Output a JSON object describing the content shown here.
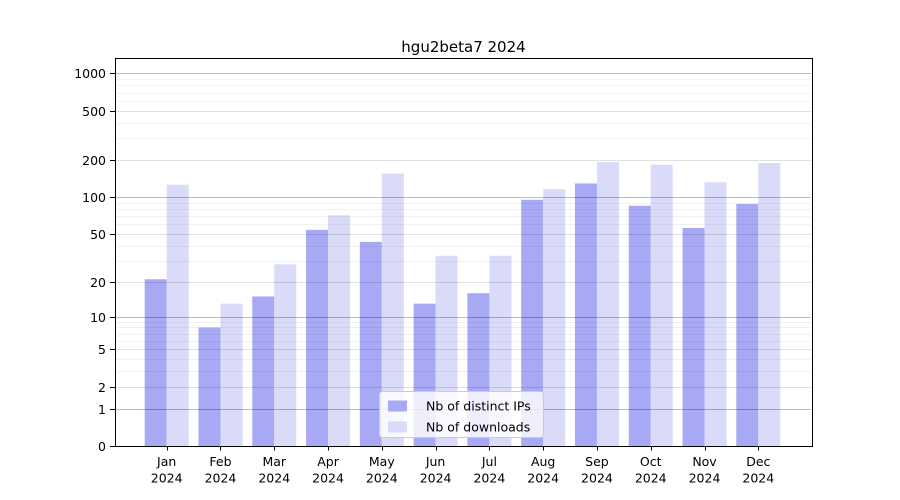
{
  "chart_data": {
    "type": "bar",
    "title": "hgu2beta7 2024",
    "categories": [
      "Jan",
      "Feb",
      "Mar",
      "Apr",
      "May",
      "Jun",
      "Jul",
      "Aug",
      "Sep",
      "Oct",
      "Nov",
      "Dec"
    ],
    "category_year": "2024",
    "series": [
      {
        "name": "Nb of distinct IPs",
        "color": "#a8a9f5",
        "values": [
          21,
          8,
          15,
          54,
          43,
          13,
          16,
          95,
          129,
          85,
          56,
          88
        ]
      },
      {
        "name": "Nb of downloads",
        "color": "#d9dbf9",
        "values": [
          126,
          13,
          28,
          71,
          155,
          33,
          33,
          116,
          192,
          183,
          132,
          189
        ]
      }
    ],
    "y_scale": "log1p",
    "y_ticks": [
      0,
      1,
      2,
      5,
      10,
      20,
      50,
      100,
      200,
      500,
      1000
    ],
    "ylim": [
      0,
      1330
    ],
    "grid": true,
    "legend": {
      "position": "inside-bottom-center",
      "entries": [
        "Nb of distinct IPs",
        "Nb of downloads"
      ]
    }
  }
}
